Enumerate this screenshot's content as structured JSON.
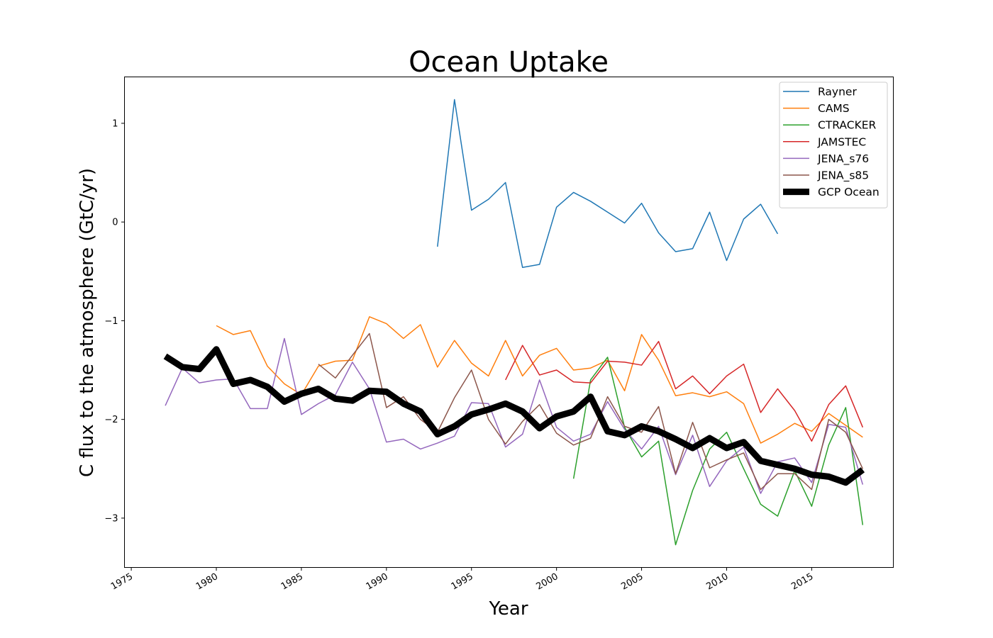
{
  "chart_data": {
    "type": "line",
    "title": "Ocean Uptake",
    "xlabel": "Year",
    "ylabel": "C flux to the atmosphere (GtC/yr)",
    "xlim": [
      1974.6,
      2019.8
    ],
    "ylim": [
      -3.5,
      1.47
    ],
    "x_ticks": [
      1975,
      1980,
      1985,
      1990,
      1995,
      2000,
      2005,
      2010,
      2015
    ],
    "y_ticks": [
      1,
      0,
      -1,
      -2,
      -3
    ],
    "y_tick_labels": [
      "1",
      "0",
      "−1",
      "−2",
      "−3"
    ],
    "grid": false,
    "legend_position": "top-right",
    "series": [
      {
        "name": "Rayner",
        "color": "#1f77b4",
        "line_width": 1.5,
        "x": [
          1993,
          1994,
          1995,
          1996,
          1997,
          1998,
          1999,
          2000,
          2001,
          2002,
          2003,
          2004,
          2005,
          2006,
          2007,
          2008,
          2009,
          2010,
          2011,
          2012,
          2013
        ],
        "values": [
          -0.25,
          1.24,
          0.12,
          0.23,
          0.4,
          -0.46,
          -0.43,
          0.15,
          0.3,
          0.21,
          0.1,
          -0.01,
          0.19,
          -0.11,
          -0.3,
          -0.27,
          0.1,
          -0.39,
          0.03,
          0.18,
          -0.12
        ]
      },
      {
        "name": "CAMS",
        "color": "#ff7f0e",
        "line_width": 1.5,
        "x": [
          1980,
          1981,
          1982,
          1983,
          1984,
          1985,
          1986,
          1987,
          1988,
          1989,
          1990,
          1991,
          1992,
          1993,
          1994,
          1995,
          1996,
          1997,
          1998,
          1999,
          2000,
          2001,
          2002,
          2003,
          2004,
          2005,
          2006,
          2007,
          2008,
          2009,
          2010,
          2011,
          2012,
          2013,
          2014,
          2015,
          2016,
          2017,
          2018
        ],
        "values": [
          -1.05,
          -1.14,
          -1.1,
          -1.46,
          -1.64,
          -1.75,
          -1.46,
          -1.41,
          -1.4,
          -0.96,
          -1.03,
          -1.18,
          -1.04,
          -1.47,
          -1.2,
          -1.43,
          -1.56,
          -1.2,
          -1.56,
          -1.35,
          -1.28,
          -1.5,
          -1.48,
          -1.4,
          -1.71,
          -1.14,
          -1.4,
          -1.76,
          -1.73,
          -1.77,
          -1.72,
          -1.84,
          -2.24,
          -2.15,
          -2.04,
          -2.12,
          -1.94,
          -2.06,
          -2.18
        ]
      },
      {
        "name": "CTRACKER",
        "color": "#2ca02c",
        "line_width": 1.5,
        "x": [
          2001,
          2002,
          2003,
          2004,
          2005,
          2006,
          2007,
          2008,
          2009,
          2010,
          2011,
          2012,
          2013,
          2014,
          2015,
          2016,
          2017,
          2018
        ],
        "values": [
          -2.6,
          -1.6,
          -1.37,
          -2.08,
          -2.38,
          -2.22,
          -3.27,
          -2.72,
          -2.3,
          -2.13,
          -2.5,
          -2.86,
          -2.98,
          -2.52,
          -2.88,
          -2.26,
          -1.88,
          -3.07
        ]
      },
      {
        "name": "JAMSTEC",
        "color": "#d62728",
        "line_width": 1.5,
        "x": [
          1997,
          1998,
          1999,
          2000,
          2001,
          2002,
          2003,
          2004,
          2005,
          2006,
          2007,
          2008,
          2009,
          2010,
          2011,
          2012,
          2013,
          2014,
          2015,
          2016,
          2017,
          2018
        ],
        "values": [
          -1.6,
          -1.25,
          -1.55,
          -1.5,
          -1.62,
          -1.63,
          -1.41,
          -1.42,
          -1.45,
          -1.21,
          -1.69,
          -1.56,
          -1.74,
          -1.56,
          -1.44,
          -1.93,
          -1.69,
          -1.91,
          -2.22,
          -1.85,
          -1.66,
          -2.08
        ]
      },
      {
        "name": "JENA_s76",
        "color": "#9467bd",
        "line_width": 1.5,
        "x": [
          1977,
          1978,
          1979,
          1980,
          1981,
          1982,
          1983,
          1984,
          1985,
          1986,
          1987,
          1988,
          1989,
          1990,
          1991,
          1992,
          1993,
          1994,
          1995,
          1996,
          1997,
          1998,
          1999,
          2000,
          2001,
          2002,
          2003,
          2004,
          2005,
          2006,
          2007,
          2008,
          2009,
          2010,
          2011,
          2012,
          2013,
          2014,
          2015,
          2016,
          2017,
          2018
        ],
        "values": [
          -1.86,
          -1.48,
          -1.63,
          -1.6,
          -1.59,
          -1.89,
          -1.89,
          -1.18,
          -1.95,
          -1.84,
          -1.75,
          -1.42,
          -1.69,
          -2.23,
          -2.2,
          -2.3,
          -2.24,
          -2.17,
          -1.83,
          -1.84,
          -2.28,
          -2.15,
          -1.6,
          -2.08,
          -2.22,
          -2.15,
          -1.82,
          -2.1,
          -2.3,
          -2.07,
          -2.56,
          -2.16,
          -2.68,
          -2.42,
          -2.28,
          -2.75,
          -2.43,
          -2.39,
          -2.64,
          -2.05,
          -2.08,
          -2.66
        ]
      },
      {
        "name": "JENA_s85",
        "color": "#8c564b",
        "line_width": 1.5,
        "x": [
          1986,
          1987,
          1988,
          1989,
          1990,
          1991,
          1992,
          1993,
          1994,
          1995,
          1996,
          1997,
          1998,
          1999,
          2000,
          2001,
          2002,
          2003,
          2004,
          2005,
          2006,
          2007,
          2008,
          2009,
          2010,
          2011,
          2012,
          2013,
          2014,
          2015,
          2016,
          2017,
          2018
        ],
        "values": [
          -1.44,
          -1.58,
          -1.35,
          -1.13,
          -1.88,
          -1.77,
          -2.0,
          -2.13,
          -1.78,
          -1.5,
          -2.0,
          -2.25,
          -2.02,
          -1.85,
          -2.14,
          -2.26,
          -2.19,
          -1.77,
          -2.07,
          -2.13,
          -1.87,
          -2.55,
          -2.03,
          -2.49,
          -2.41,
          -2.34,
          -2.71,
          -2.55,
          -2.55,
          -2.71,
          -2.0,
          -2.13,
          -2.5
        ]
      },
      {
        "name": "GCP Ocean",
        "color": "#000000",
        "line_width": 9,
        "x": [
          1977,
          1978,
          1979,
          1980,
          1981,
          1982,
          1983,
          1984,
          1985,
          1986,
          1987,
          1988,
          1989,
          1990,
          1991,
          1992,
          1993,
          1994,
          1995,
          1996,
          1997,
          1998,
          1999,
          2000,
          2001,
          2002,
          2003,
          2004,
          2005,
          2006,
          2007,
          2008,
          2009,
          2010,
          2011,
          2012,
          2013,
          2014,
          2015,
          2016,
          2017,
          2018
        ],
        "values": [
          -1.36,
          -1.47,
          -1.49,
          -1.29,
          -1.64,
          -1.6,
          -1.67,
          -1.82,
          -1.74,
          -1.69,
          -1.79,
          -1.81,
          -1.71,
          -1.72,
          -1.84,
          -1.92,
          -2.15,
          -2.07,
          -1.95,
          -1.9,
          -1.84,
          -1.92,
          -2.09,
          -1.97,
          -1.92,
          -1.77,
          -2.12,
          -2.16,
          -2.07,
          -2.12,
          -2.2,
          -2.29,
          -2.19,
          -2.29,
          -2.23,
          -2.42,
          -2.46,
          -2.5,
          -2.56,
          -2.58,
          -2.64,
          -2.51
        ]
      }
    ]
  }
}
